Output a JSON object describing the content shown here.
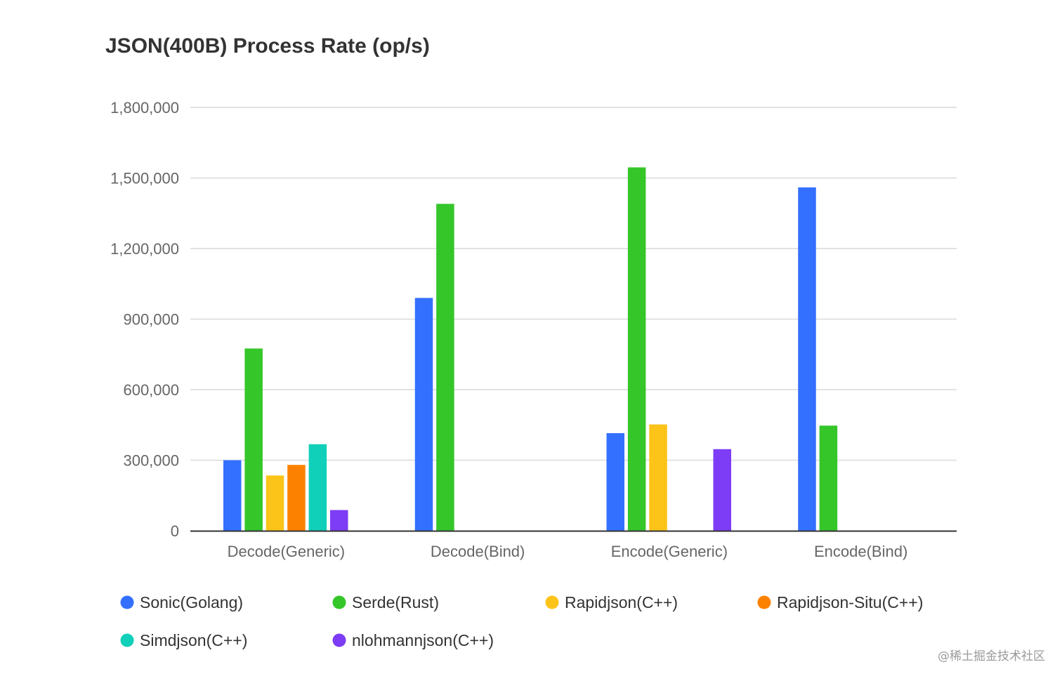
{
  "watermark": "@稀土掘金技术社区",
  "chart_data": {
    "type": "bar",
    "title": "JSON(400B) Process Rate (op/s)",
    "xlabel": "",
    "ylabel": "",
    "ylim": [
      0,
      1800000
    ],
    "yticks": [
      0,
      300000,
      600000,
      900000,
      1200000,
      1500000,
      1800000
    ],
    "ytick_labels": [
      "0",
      "300,000",
      "600,000",
      "900,000",
      "1,200,000",
      "1,500,000",
      "1,800,000"
    ],
    "grid": true,
    "legend_position": "bottom",
    "categories": [
      "Decode(Generic)",
      "Decode(Bind)",
      "Encode(Generic)",
      "Encode(Bind)"
    ],
    "series": [
      {
        "name": "Sonic(Golang)",
        "color": "#3470ff",
        "values": [
          300000,
          990000,
          415000,
          1460000
        ]
      },
      {
        "name": "Serde(Rust)",
        "color": "#35c62a",
        "values": [
          775000,
          1390000,
          1545000,
          447000
        ]
      },
      {
        "name": "Rapidjson(C++)",
        "color": "#fcc419",
        "values": [
          235000,
          null,
          452000,
          null
        ]
      },
      {
        "name": "Rapidjson-Situ(C++)",
        "color": "#fd8100",
        "values": [
          280000,
          null,
          null,
          null
        ]
      },
      {
        "name": "Simdjson(C++)",
        "color": "#10d0b9",
        "values": [
          368000,
          null,
          null,
          null
        ]
      },
      {
        "name": "nlohmannjson(C++)",
        "color": "#7d3cf5",
        "values": [
          88000,
          null,
          347000,
          null
        ]
      }
    ]
  }
}
